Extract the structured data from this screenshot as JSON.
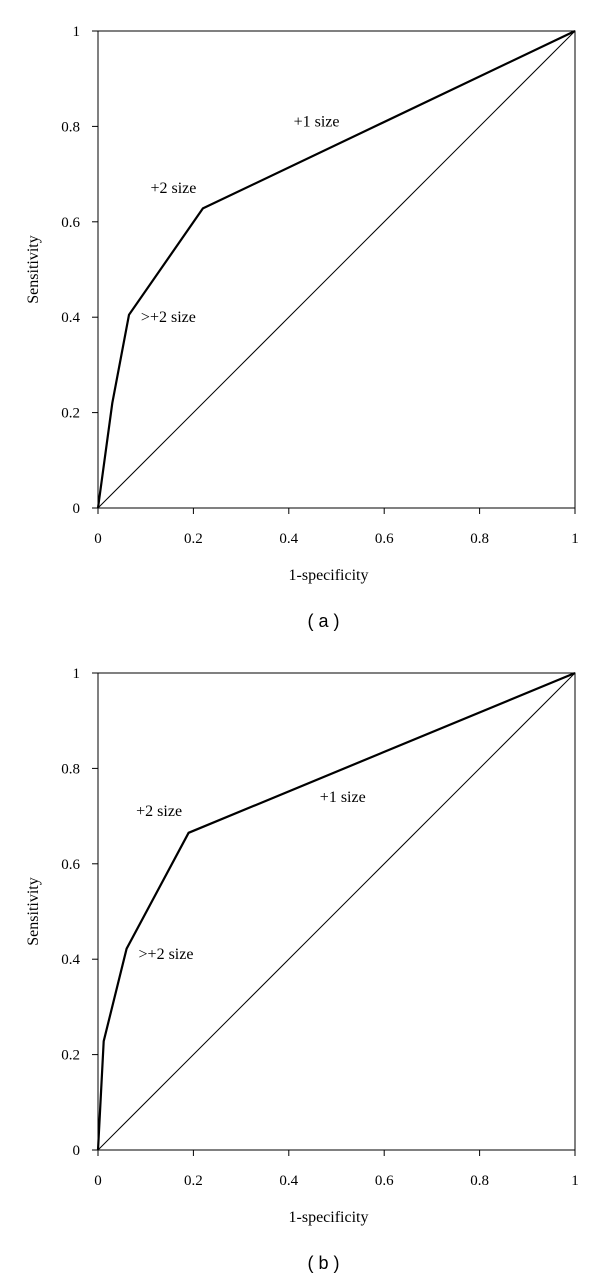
{
  "chart_data": [
    {
      "type": "line",
      "panel_label": "( a )",
      "xlabel": "1-specificity",
      "ylabel": "Sensitivity",
      "xlim": [
        0,
        1
      ],
      "ylim": [
        0,
        1
      ],
      "xticks": [
        "0",
        "0.2",
        "0.4",
        "0.6",
        "0.8",
        "1"
      ],
      "yticks": [
        "0",
        "0.2",
        "0.4",
        "0.6",
        "0.8",
        "1"
      ],
      "grid": false,
      "series": [
        {
          "style": "thick",
          "x": [
            0,
            0.03,
            0.065,
            0.22,
            1
          ],
          "y": [
            0,
            0.22,
            0.405,
            0.628,
            1
          ]
        },
        {
          "style": "thin",
          "x": [
            0,
            1
          ],
          "y": [
            0,
            1
          ]
        }
      ],
      "annotations": [
        {
          "text": "+1 size",
          "x": 0.41,
          "y": 0.8
        },
        {
          "text": "+2 size",
          "x": 0.11,
          "y": 0.66
        },
        {
          "text": ">+2 size",
          "x": 0.09,
          "y": 0.39
        }
      ]
    },
    {
      "type": "line",
      "panel_label": "( b )",
      "xlabel": "1-specificity",
      "ylabel": "Sensitivity",
      "xlim": [
        0,
        1
      ],
      "ylim": [
        0,
        1
      ],
      "xticks": [
        "0",
        "0.2",
        "0.4",
        "0.6",
        "0.8",
        "1"
      ],
      "yticks": [
        "0",
        "0.2",
        "0.4",
        "0.6",
        "0.8",
        "1"
      ],
      "grid": false,
      "series": [
        {
          "style": "thick",
          "x": [
            0,
            0.012,
            0.06,
            0.19,
            1
          ],
          "y": [
            0,
            0.228,
            0.422,
            0.665,
            1
          ]
        },
        {
          "style": "thin",
          "x": [
            0,
            1
          ],
          "y": [
            0,
            1
          ]
        }
      ],
      "annotations": [
        {
          "text": "+1 size",
          "x": 0.465,
          "y": 0.73
        },
        {
          "text": "+2 size",
          "x": 0.08,
          "y": 0.7
        },
        {
          "text": ">+2 size",
          "x": 0.085,
          "y": 0.4
        }
      ]
    }
  ]
}
